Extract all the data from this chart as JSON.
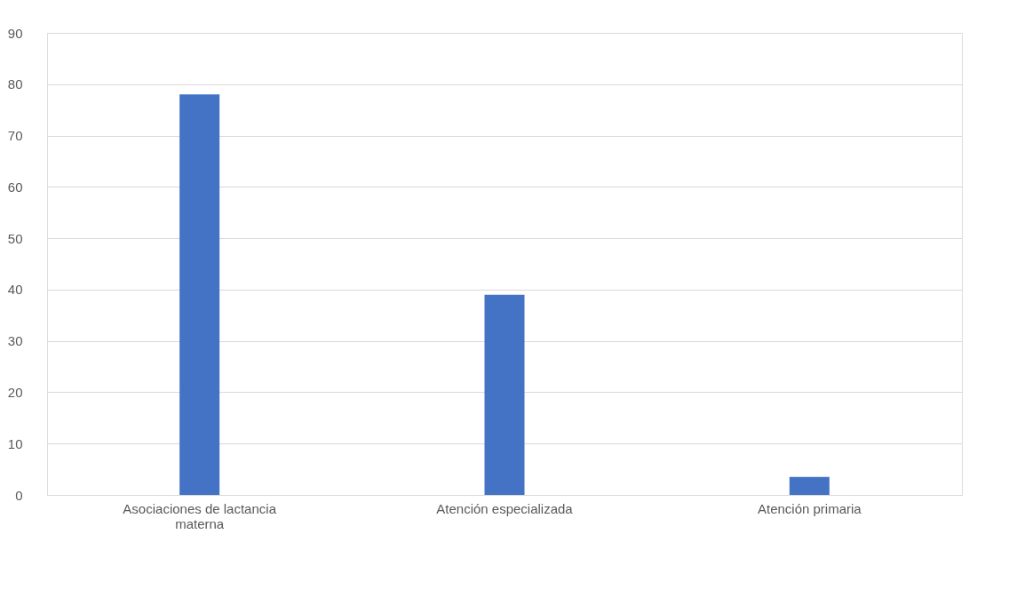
{
  "chart_data": {
    "type": "bar",
    "categories": [
      "Asociaciones de lactancia materna",
      "Atención especializada",
      "Atención primaria",
      null
    ],
    "values": [
      78,
      39,
      3.5,
      null
    ],
    "color": "#4472c4",
    "ylim": [
      0,
      90
    ],
    "yticks": [
      0,
      10,
      20,
      30,
      40,
      50,
      60,
      70,
      80,
      90
    ],
    "grid": "y"
  }
}
